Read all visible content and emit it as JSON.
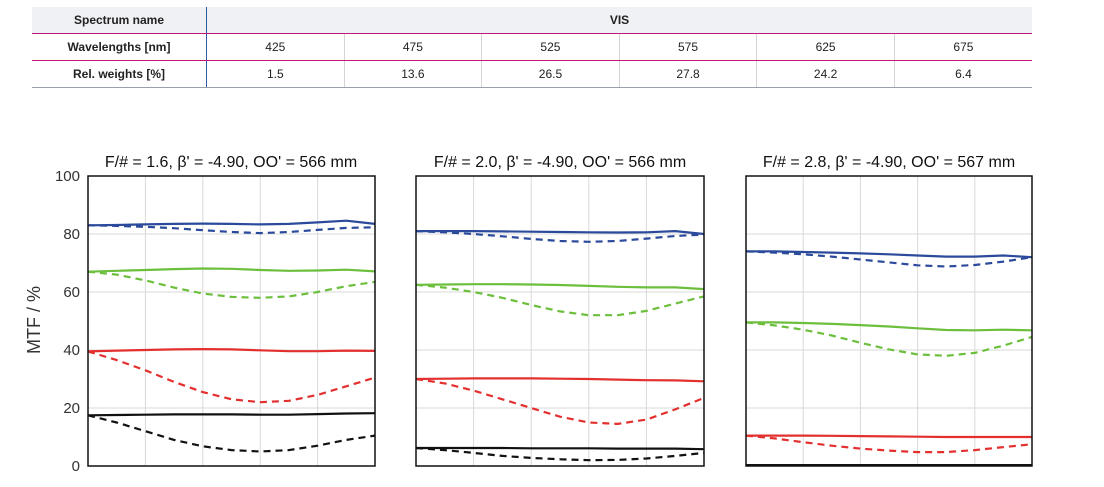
{
  "table": {
    "spectrum_label": "Spectrum name",
    "spectrum_value": "VIS",
    "wavelength_label": "Wavelengths [nm]",
    "wavelengths": [
      "425",
      "475",
      "525",
      "575",
      "625",
      "675"
    ],
    "weights_label": "Rel. weights [%]",
    "weights": [
      "1.5",
      "13.6",
      "26.5",
      "27.8",
      "24.2",
      "6.4"
    ]
  },
  "chart_data": [
    {
      "type": "line",
      "title": "F/# = 1.6, β' = -4.90, OO' = 566 mm",
      "ylabel": "MTF / %",
      "ylim": [
        0,
        100
      ],
      "yticks": [
        "0",
        "20",
        "40",
        "60",
        "80",
        "100"
      ],
      "xlim": [
        0,
        1
      ],
      "grid": true,
      "x": [
        0,
        0.1,
        0.2,
        0.3,
        0.4,
        0.5,
        0.6,
        0.7,
        0.8,
        0.9,
        1.0
      ],
      "series": [
        {
          "color": "#2b4a9b",
          "style": "solid",
          "values": [
            83,
            83.1,
            83.3,
            83.5,
            83.6,
            83.5,
            83.3,
            83.5,
            84,
            84.6,
            83.5
          ]
        },
        {
          "color": "#2b4a9b",
          "style": "dashed",
          "values": [
            83,
            82.8,
            82.5,
            82,
            81.3,
            80.7,
            80.3,
            80.7,
            81.4,
            82.1,
            82.3
          ]
        },
        {
          "color": "#6cbf3c",
          "style": "solid",
          "values": [
            67,
            67.3,
            67.6,
            67.9,
            68.1,
            68,
            67.6,
            67.3,
            67.4,
            67.7,
            67.1
          ]
        },
        {
          "color": "#6cbf3c",
          "style": "dashed",
          "values": [
            67,
            66,
            64,
            61.5,
            59.5,
            58.3,
            58,
            58.5,
            60,
            62,
            63.5
          ]
        },
        {
          "color": "#e3302f",
          "style": "solid",
          "values": [
            39.5,
            39.8,
            40,
            40.2,
            40.3,
            40.2,
            39.9,
            39.6,
            39.6,
            39.8,
            39.7
          ]
        },
        {
          "color": "#e3302f",
          "style": "dashed",
          "values": [
            39.5,
            36.5,
            33,
            29,
            25.5,
            23,
            22,
            22.5,
            24.5,
            27.5,
            30.5
          ]
        },
        {
          "color": "#111111",
          "style": "solid",
          "values": [
            17.5,
            17.6,
            17.7,
            17.8,
            17.8,
            17.8,
            17.7,
            17.7,
            17.9,
            18.1,
            18.2
          ]
        },
        {
          "color": "#111111",
          "style": "dashed",
          "values": [
            17.5,
            15,
            12,
            9,
            6.8,
            5.5,
            5,
            5.5,
            7,
            9,
            10.5
          ]
        }
      ]
    },
    {
      "type": "line",
      "title": "F/# = 2.0, β' = -4.90, OO' = 566 mm",
      "ylim": [
        0,
        100
      ],
      "xlim": [
        0,
        1
      ],
      "grid": true,
      "x": [
        0,
        0.1,
        0.2,
        0.3,
        0.4,
        0.5,
        0.6,
        0.7,
        0.8,
        0.9,
        1.0
      ],
      "series": [
        {
          "color": "#2b4a9b",
          "style": "solid",
          "values": [
            81,
            81,
            81,
            80.9,
            80.8,
            80.7,
            80.6,
            80.5,
            80.6,
            81,
            80
          ]
        },
        {
          "color": "#2b4a9b",
          "style": "dashed",
          "values": [
            81,
            80.6,
            80,
            79.2,
            78.3,
            77.6,
            77.3,
            77.6,
            78.4,
            79.3,
            79.8
          ]
        },
        {
          "color": "#6cbf3c",
          "style": "solid",
          "values": [
            62.5,
            62.6,
            62.7,
            62.7,
            62.6,
            62.4,
            62.1,
            61.8,
            61.6,
            61.6,
            61
          ]
        },
        {
          "color": "#6cbf3c",
          "style": "dashed",
          "values": [
            62.5,
            61.5,
            60,
            58,
            55.5,
            53.3,
            52,
            52,
            53.5,
            56,
            58.5
          ]
        },
        {
          "color": "#e3302f",
          "style": "solid",
          "values": [
            30,
            30.1,
            30.2,
            30.2,
            30.2,
            30.1,
            30,
            29.8,
            29.6,
            29.5,
            29.2
          ]
        },
        {
          "color": "#e3302f",
          "style": "dashed",
          "values": [
            30,
            28.5,
            26,
            23,
            20,
            17,
            15,
            14.5,
            16,
            19.5,
            23.5
          ]
        },
        {
          "color": "#111111",
          "style": "solid",
          "values": [
            6.2,
            6.2,
            6.2,
            6.2,
            6.1,
            6.1,
            6.1,
            6,
            6,
            6,
            5.8
          ]
        },
        {
          "color": "#111111",
          "style": "dashed",
          "values": [
            6.2,
            5.5,
            4.5,
            3.5,
            2.8,
            2.3,
            2,
            2.1,
            2.6,
            3.5,
            4.5
          ]
        }
      ]
    },
    {
      "type": "line",
      "title": "F/# = 2.8, β' = -4.90, OO' = 567 mm",
      "ylim": [
        0,
        100
      ],
      "xlim": [
        0,
        1
      ],
      "grid": true,
      "x": [
        0,
        0.1,
        0.2,
        0.3,
        0.4,
        0.5,
        0.6,
        0.7,
        0.8,
        0.9,
        1.0
      ],
      "series": [
        {
          "color": "#2b4a9b",
          "style": "solid",
          "values": [
            74,
            74,
            73.8,
            73.6,
            73.3,
            73,
            72.6,
            72.2,
            72.2,
            72.6,
            72
          ]
        },
        {
          "color": "#2b4a9b",
          "style": "dashed",
          "values": [
            74,
            73.6,
            73,
            72.2,
            71.2,
            70.2,
            69.2,
            68.8,
            69.3,
            70.5,
            72
          ]
        },
        {
          "color": "#6cbf3c",
          "style": "solid",
          "values": [
            49.5,
            49.5,
            49.3,
            49,
            48.6,
            48.1,
            47.5,
            46.9,
            46.8,
            47,
            46.8
          ]
        },
        {
          "color": "#6cbf3c",
          "style": "dashed",
          "values": [
            49.5,
            48.5,
            47,
            45,
            42.5,
            40.2,
            38.5,
            38,
            39,
            41.5,
            44.5
          ]
        },
        {
          "color": "#e3302f",
          "style": "solid",
          "values": [
            10.5,
            10.5,
            10.5,
            10.4,
            10.3,
            10.2,
            10.1,
            10,
            10,
            10,
            10
          ]
        },
        {
          "color": "#e3302f",
          "style": "dashed",
          "values": [
            10.5,
            9.5,
            8.2,
            7,
            6,
            5.3,
            4.8,
            4.8,
            5.5,
            6.5,
            7.5
          ]
        },
        {
          "color": "#111111",
          "style": "solid",
          "values": [
            0.3,
            0.3,
            0.3,
            0.3,
            0.3,
            0.3,
            0.3,
            0.3,
            0.3,
            0.3,
            0.3
          ]
        },
        {
          "color": "#111111",
          "style": "dashed",
          "values": [
            0.3,
            0.3,
            0.3,
            0.3,
            0.3,
            0.3,
            0.3,
            0.3,
            0.3,
            0.3,
            0.3
          ]
        }
      ]
    }
  ]
}
